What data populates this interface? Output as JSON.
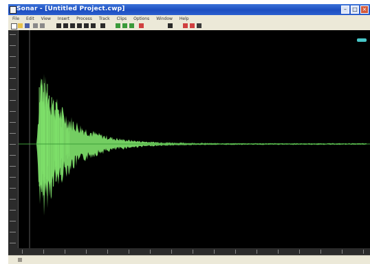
{
  "window": {
    "title": "Sonar - [Untitled Project.cwp]",
    "controls": [
      "minimize",
      "maximize",
      "close"
    ]
  },
  "menu": {
    "items": [
      "File",
      "Edit",
      "View",
      "Insert",
      "Process",
      "Track",
      "Clips",
      "Options",
      "Window",
      "Help"
    ]
  },
  "toolbar": {
    "icons": [
      "new-icon",
      "open-icon",
      "save-icon",
      "undo-icon",
      "redo-icon",
      "track-view-icon",
      "grid-icon",
      "snap-icon",
      "zoom-in-icon",
      "zoom-out-icon",
      "marker-icon",
      "loop-icon",
      "pencil-icon",
      "select-icon",
      "magnify-icon",
      "scissors-icon",
      "mixer-icon",
      "play-icon",
      "record-icon",
      "stop-icon"
    ]
  },
  "waveform": {
    "color": "#7ee06a",
    "background": "#000000",
    "centerline_color": "#3ea03a",
    "type": "decaying-oscillation"
  },
  "zoom_indicator_color": "#47c6c7"
}
